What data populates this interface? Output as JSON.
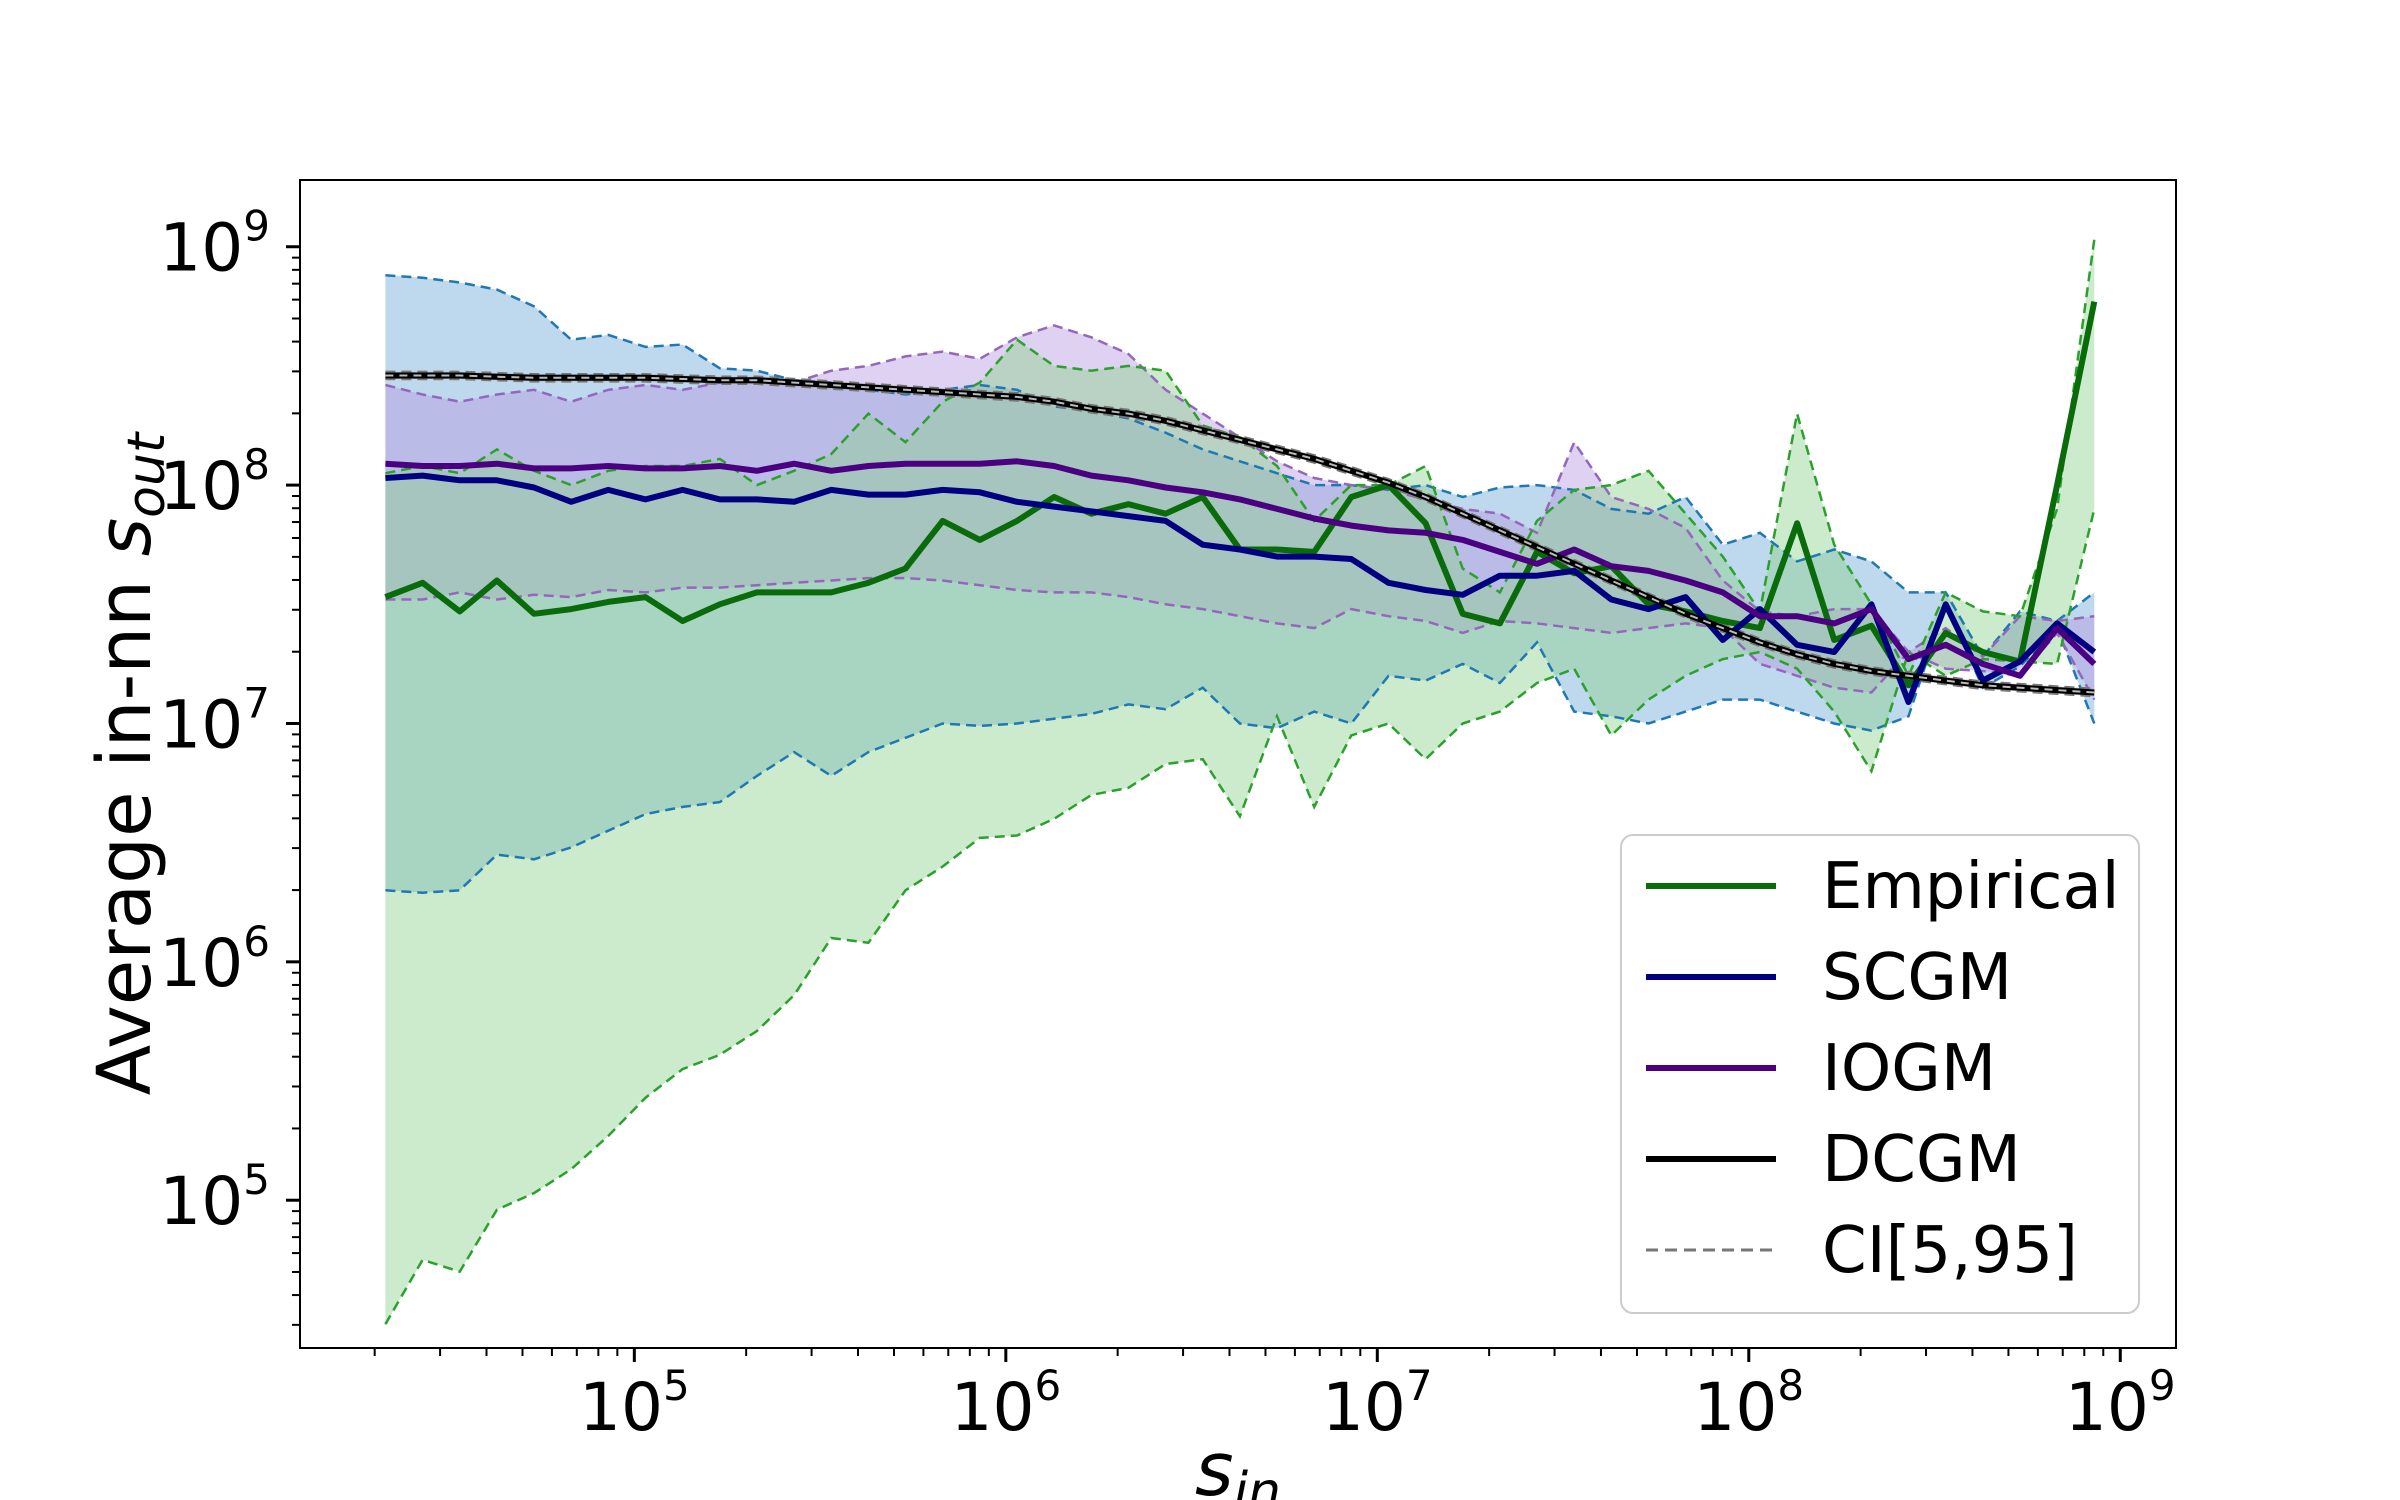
{
  "chart_data": {
    "type": "line",
    "title": "",
    "xlabel": {
      "base": "s",
      "sub": "in"
    },
    "ylabel": {
      "text": "Average in-nn ",
      "base": "s",
      "sub": "out"
    },
    "x_scale": "log",
    "y_scale": "log",
    "xlim_log10": [
      4.1,
      9.15
    ],
    "ylim_log10": [
      4.38,
      9.28
    ],
    "x_ticks": [
      {
        "base": "10",
        "exp": "5",
        "log10": 5
      },
      {
        "base": "10",
        "exp": "6",
        "log10": 6
      },
      {
        "base": "10",
        "exp": "7",
        "log10": 7
      },
      {
        "base": "10",
        "exp": "8",
        "log10": 8
      },
      {
        "base": "10",
        "exp": "9",
        "log10": 9
      }
    ],
    "y_ticks": [
      {
        "base": "10",
        "exp": "5",
        "log10": 5
      },
      {
        "base": "10",
        "exp": "6",
        "log10": 6
      },
      {
        "base": "10",
        "exp": "7",
        "log10": 7
      },
      {
        "base": "10",
        "exp": "8",
        "log10": 8
      },
      {
        "base": "10",
        "exp": "9",
        "log10": 9
      }
    ],
    "x_log10": [
      4.33,
      4.43,
      4.53,
      4.63,
      4.73,
      4.83,
      4.93,
      5.03,
      5.13,
      5.23,
      5.33,
      5.43,
      5.53,
      5.63,
      5.73,
      5.83,
      5.93,
      6.03,
      6.13,
      6.23,
      6.33,
      6.43,
      6.53,
      6.63,
      6.73,
      6.83,
      6.93,
      7.03,
      7.13,
      7.23,
      7.33,
      7.43,
      7.53,
      7.63,
      7.73,
      7.83,
      7.93,
      8.03,
      8.13,
      8.23,
      8.33,
      8.43,
      8.53,
      8.63,
      8.73,
      8.83,
      8.93
    ],
    "series": [
      {
        "name": "Empirical",
        "color": "#0a6b0a",
        "fill": "#8fd28f",
        "ci_color": "#2ca02c",
        "median_log10": [
          7.53,
          7.59,
          7.47,
          7.6,
          7.46,
          7.48,
          7.51,
          7.53,
          7.43,
          7.5,
          7.55,
          7.55,
          7.55,
          7.59,
          7.65,
          7.85,
          7.77,
          7.85,
          7.95,
          7.88,
          7.92,
          7.88,
          7.95,
          7.73,
          7.73,
          7.72,
          7.95,
          8.0,
          7.84,
          7.46,
          7.42,
          7.72,
          7.63,
          7.66,
          7.5,
          7.47,
          7.43,
          7.4,
          7.84,
          7.35,
          7.41,
          7.16,
          7.38,
          7.3,
          7.26,
          8.0,
          8.77
        ],
        "upper_log10": [
          8.05,
          8.08,
          8.05,
          8.15,
          8.06,
          8.0,
          8.06,
          8.08,
          8.08,
          8.11,
          8.0,
          8.06,
          8.13,
          8.3,
          8.18,
          8.35,
          8.43,
          8.61,
          8.5,
          8.48,
          8.5,
          8.48,
          8.25,
          8.2,
          8.08,
          7.85,
          8.0,
          8.0,
          8.08,
          7.65,
          7.55,
          7.85,
          7.98,
          8.0,
          8.06,
          7.88,
          7.7,
          7.47,
          8.3,
          7.75,
          7.5,
          7.2,
          7.55,
          7.47,
          7.45,
          7.9,
          9.03
        ],
        "lower_log10": [
          4.48,
          4.75,
          4.7,
          4.96,
          5.03,
          5.13,
          5.27,
          5.43,
          5.55,
          5.61,
          5.71,
          5.86,
          6.1,
          6.08,
          6.3,
          6.4,
          6.52,
          6.53,
          6.6,
          6.7,
          6.73,
          6.83,
          6.85,
          6.61,
          7.03,
          6.65,
          6.95,
          7.0,
          6.85,
          7.0,
          7.05,
          7.17,
          7.23,
          6.95,
          7.1,
          7.2,
          7.27,
          7.3,
          7.23,
          7.05,
          6.8,
          7.3,
          7.2,
          7.27,
          7.26,
          7.25,
          7.9
        ]
      },
      {
        "name": "SCGM",
        "color": "#000080",
        "fill": "#6fa8d6",
        "ci_color": "#1f77b4",
        "median_log10": [
          8.03,
          8.04,
          8.02,
          8.02,
          7.99,
          7.93,
          7.98,
          7.94,
          7.98,
          7.94,
          7.94,
          7.93,
          7.98,
          7.96,
          7.96,
          7.98,
          7.97,
          7.93,
          7.91,
          7.89,
          7.87,
          7.85,
          7.75,
          7.73,
          7.7,
          7.7,
          7.69,
          7.59,
          7.56,
          7.54,
          7.62,
          7.62,
          7.64,
          7.52,
          7.48,
          7.53,
          7.35,
          7.48,
          7.33,
          7.3,
          7.5,
          7.09,
          7.5,
          7.18,
          7.26,
          7.42,
          7.3
        ],
        "upper_log10": [
          8.88,
          8.87,
          8.85,
          8.82,
          8.75,
          8.61,
          8.63,
          8.58,
          8.59,
          8.49,
          8.48,
          8.44,
          8.43,
          8.4,
          8.38,
          8.4,
          8.42,
          8.4,
          8.33,
          8.31,
          8.28,
          8.22,
          8.15,
          8.1,
          8.05,
          8.0,
          8.0,
          7.98,
          8.0,
          7.95,
          7.99,
          8.0,
          7.98,
          7.9,
          7.88,
          7.95,
          7.75,
          7.8,
          7.68,
          7.73,
          7.68,
          7.55,
          7.55,
          7.28,
          7.47,
          7.43,
          7.55
        ],
        "lower_log10": [
          6.3,
          6.29,
          6.3,
          6.45,
          6.43,
          6.48,
          6.55,
          6.62,
          6.65,
          6.67,
          6.78,
          6.88,
          6.78,
          6.88,
          6.94,
          7.0,
          6.99,
          7.0,
          7.02,
          7.04,
          7.08,
          7.06,
          7.15,
          7.0,
          6.98,
          7.05,
          7.0,
          7.2,
          7.18,
          7.25,
          7.17,
          7.34,
          7.05,
          7.03,
          7.0,
          7.05,
          7.1,
          7.1,
          7.05,
          7.0,
          6.97,
          7.03,
          7.5,
          7.15,
          7.24,
          7.4,
          7.0
        ]
      },
      {
        "name": "IOGM",
        "color": "#4b0082",
        "fill": "#b89ae0",
        "ci_color": "#9467bd",
        "median_log10": [
          8.09,
          8.08,
          8.08,
          8.09,
          8.07,
          8.07,
          8.08,
          8.07,
          8.07,
          8.08,
          8.06,
          8.09,
          8.06,
          8.08,
          8.09,
          8.09,
          8.09,
          8.1,
          8.08,
          8.04,
          8.02,
          7.99,
          7.97,
          7.94,
          7.9,
          7.86,
          7.83,
          7.81,
          7.8,
          7.77,
          7.72,
          7.67,
          7.73,
          7.66,
          7.64,
          7.6,
          7.55,
          7.45,
          7.45,
          7.42,
          7.48,
          7.27,
          7.33,
          7.25,
          7.2,
          7.4,
          7.25
        ],
        "upper_log10": [
          8.42,
          8.38,
          8.35,
          8.38,
          8.4,
          8.35,
          8.4,
          8.42,
          8.4,
          8.43,
          8.45,
          8.43,
          8.48,
          8.5,
          8.54,
          8.56,
          8.53,
          8.62,
          8.67,
          8.62,
          8.55,
          8.4,
          8.3,
          8.2,
          8.1,
          8.03,
          8.0,
          7.98,
          7.94,
          7.9,
          7.88,
          7.8,
          8.18,
          7.95,
          7.9,
          7.82,
          7.6,
          7.47,
          7.45,
          7.48,
          7.48,
          7.3,
          7.4,
          7.28,
          7.45,
          7.43,
          7.45
        ],
        "lower_log10": [
          7.52,
          7.52,
          7.55,
          7.52,
          7.54,
          7.53,
          7.56,
          7.55,
          7.57,
          7.57,
          7.58,
          7.59,
          7.6,
          7.61,
          7.61,
          7.6,
          7.58,
          7.56,
          7.55,
          7.55,
          7.53,
          7.5,
          7.48,
          7.45,
          7.42,
          7.4,
          7.48,
          7.45,
          7.43,
          7.38,
          7.43,
          7.42,
          7.4,
          7.38,
          7.4,
          7.42,
          7.4,
          7.25,
          7.2,
          7.15,
          7.13,
          7.3,
          7.23,
          7.22,
          7.2,
          7.38,
          7.1
        ]
      },
      {
        "name": "DCGM",
        "color": "#000000",
        "fill": "#9a9a9a",
        "ci_color": "#777777",
        "median_log10": [
          8.46,
          8.46,
          8.46,
          8.455,
          8.45,
          8.45,
          8.45,
          8.45,
          8.445,
          8.44,
          8.44,
          8.43,
          8.42,
          8.41,
          8.4,
          8.39,
          8.38,
          8.37,
          8.35,
          8.32,
          8.3,
          8.27,
          8.23,
          8.19,
          8.15,
          8.11,
          8.06,
          8.01,
          7.95,
          7.88,
          7.81,
          7.74,
          7.67,
          7.6,
          7.53,
          7.46,
          7.4,
          7.34,
          7.29,
          7.25,
          7.22,
          7.2,
          7.18,
          7.16,
          7.15,
          7.14,
          7.13
        ],
        "upper_log10": [
          8.475,
          8.475,
          8.475,
          8.47,
          8.465,
          8.465,
          8.465,
          8.465,
          8.46,
          8.455,
          8.455,
          8.445,
          8.435,
          8.425,
          8.415,
          8.405,
          8.395,
          8.385,
          8.365,
          8.335,
          8.315,
          8.285,
          8.245,
          8.205,
          8.165,
          8.125,
          8.075,
          8.025,
          7.965,
          7.895,
          7.825,
          7.755,
          7.685,
          7.615,
          7.545,
          7.475,
          7.415,
          7.355,
          7.305,
          7.265,
          7.235,
          7.215,
          7.195,
          7.175,
          7.165,
          7.155,
          7.145
        ],
        "lower_log10": [
          8.445,
          8.445,
          8.445,
          8.44,
          8.435,
          8.435,
          8.435,
          8.435,
          8.43,
          8.425,
          8.425,
          8.415,
          8.405,
          8.395,
          8.385,
          8.375,
          8.365,
          8.355,
          8.335,
          8.305,
          8.285,
          8.255,
          8.215,
          8.175,
          8.135,
          8.095,
          8.045,
          7.995,
          7.935,
          7.865,
          7.795,
          7.725,
          7.655,
          7.585,
          7.515,
          7.445,
          7.385,
          7.325,
          7.275,
          7.235,
          7.205,
          7.185,
          7.165,
          7.145,
          7.135,
          7.125,
          7.115
        ]
      }
    ],
    "legend": {
      "position": "lower-right",
      "entries": [
        {
          "label": "Empirical",
          "color": "#0a6b0a",
          "style": "solid"
        },
        {
          "label": "SCGM",
          "color": "#000080",
          "style": "solid"
        },
        {
          "label": "IOGM",
          "color": "#4b0082",
          "style": "solid"
        },
        {
          "label": "DCGM",
          "color": "#000000",
          "style": "solid"
        },
        {
          "label": "CI[5,95]",
          "color": "#777777",
          "style": "dashed"
        }
      ]
    }
  }
}
